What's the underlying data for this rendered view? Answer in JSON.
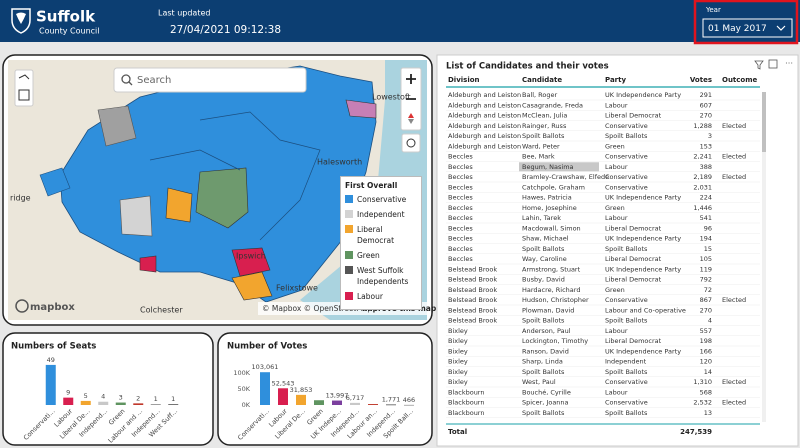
{
  "header": {
    "logo_title": "Suffolk",
    "logo_subtitle": "County Council",
    "last_updated_label": "Last updated",
    "last_updated": "27/04/2021 09:12:38",
    "year_label": "Year",
    "year_value": "01 May 2017"
  },
  "map": {
    "search_placeholder": "Search",
    "place_labels": [
      "Lowestoft",
      "Halesworth",
      "Ipswich",
      "Felixstowe",
      "Colchester",
      "ridge"
    ],
    "attribution": "© Mapbox © OpenStreetMap",
    "improve_link": "Improve this map",
    "logo": "mapbox",
    "legend": {
      "title": "First Overall",
      "items": [
        {
          "name": "Conservative",
          "color": "#2f8fdc"
        },
        {
          "name": "Independent",
          "color": "#d3d3d3"
        },
        {
          "name": "Liberal Democrat",
          "color": "#f2a52e"
        },
        {
          "name": "Green",
          "color": "#5f9460"
        },
        {
          "name": "West Suffolk Independents",
          "color": "#555555"
        },
        {
          "name": "Labour",
          "color": "#d81f4f"
        }
      ]
    }
  },
  "table": {
    "title": "List of Candidates and their votes",
    "columns": [
      "Division",
      "Candidate",
      "Party",
      "Votes",
      "Outcome"
    ],
    "rows": [
      [
        "Aldeburgh and Leiston",
        "Ball, Roger",
        "UK Independence Party",
        "291"
      ],
      [
        "Aldeburgh and Leiston",
        "Casagrande, Freda",
        "Labour",
        "607"
      ],
      [
        "Aldeburgh and Leiston",
        "McClean, Julia",
        "Liberal Democrat",
        "270"
      ],
      [
        "Aldeburgh and Leiston",
        "Rainger, Russ",
        "Conservative",
        "1,288",
        "Elected"
      ],
      [
        "Aldeburgh and Leiston",
        "Spoilt Ballots",
        "Spoilt Ballots",
        "3"
      ],
      [
        "Aldeburgh and Leiston",
        "Ward, Peter",
        "Green",
        "153"
      ],
      [
        "Beccles",
        "Bee, Mark",
        "Conservative",
        "2,241",
        "Elected"
      ],
      [
        "Beccles",
        "Begum, Nasima",
        "Labour",
        "388"
      ],
      [
        "Beccles",
        "Bramley-Crawshaw, Elfede",
        "Conservative",
        "2,189",
        "Elected"
      ],
      [
        "Beccles",
        "Catchpole, Graham",
        "Conservative",
        "2,031"
      ],
      [
        "Beccles",
        "Hawes, Patricia",
        "UK Independence Party",
        "224"
      ],
      [
        "Beccles",
        "Home, Josephine",
        "Green",
        "1,446"
      ],
      [
        "Beccles",
        "Lahin, Tarek",
        "Labour",
        "541"
      ],
      [
        "Beccles",
        "Macdowall, Simon",
        "Liberal Democrat",
        "96"
      ],
      [
        "Beccles",
        "Shaw, Michael",
        "UK Independence Party",
        "194"
      ],
      [
        "Beccles",
        "Spoilt Ballots",
        "Spoilt Ballots",
        "15"
      ],
      [
        "Beccles",
        "Way, Caroline",
        "Liberal Democrat",
        "105"
      ],
      [
        "Belstead Brook",
        "Armstrong, Stuart",
        "UK Independence Party",
        "119"
      ],
      [
        "Belstead Brook",
        "Busby, David",
        "Liberal Democrat",
        "792"
      ],
      [
        "Belstead Brook",
        "Hardacre, Richard",
        "Green",
        "72"
      ],
      [
        "Belstead Brook",
        "Hudson, Christopher",
        "Conservative",
        "867",
        "Elected"
      ],
      [
        "Belstead Brook",
        "Plowman, David",
        "Labour and Co-operative",
        "270"
      ],
      [
        "Belstead Brook",
        "Spoilt Ballots",
        "Spoilt Ballots",
        "4"
      ],
      [
        "Bixley",
        "Anderson, Paul",
        "Labour",
        "557"
      ],
      [
        "Bixley",
        "Lockington, Timothy",
        "Liberal Democrat",
        "198"
      ],
      [
        "Bixley",
        "Ranson, David",
        "UK Independence Party",
        "166"
      ],
      [
        "Bixley",
        "Sharp, Linda",
        "Independent",
        "120"
      ],
      [
        "Bixley",
        "Spoilt Ballots",
        "Spoilt Ballots",
        "14"
      ],
      [
        "Bixley",
        "West, Paul",
        "Conservative",
        "1,310",
        "Elected"
      ],
      [
        "Blackbourn",
        "Bouché, Cyrille",
        "Labour",
        "568"
      ],
      [
        "Blackbourn",
        "Spicer, Joanna",
        "Conservative",
        "2,532",
        "Elected"
      ],
      [
        "Blackbourn",
        "Spoilt Ballots",
        "Spoilt Ballots",
        "13"
      ]
    ],
    "total_label": "Total",
    "total_votes": "247,539"
  },
  "seats_chart": {
    "type": "bar",
    "title": "Numbers of Seats",
    "categories": [
      "Conservati...",
      "Labour",
      "Liberal De...",
      "Independ...",
      "Green",
      "Labour and ...",
      "Independ...",
      "West Suff..."
    ],
    "values": [
      49,
      9,
      5,
      4,
      3,
      2,
      1,
      1
    ],
    "colors": [
      "#2f8fdc",
      "#d81f4f",
      "#f2a52e",
      "#c8c8c8",
      "#5f9460",
      "#c0392b",
      "#8a8a8a",
      "#555555"
    ],
    "ylim": [
      0,
      55
    ]
  },
  "votes_chart": {
    "type": "bar",
    "title": "Number of Votes",
    "categories": [
      "Conservati...",
      "Labour",
      "Liberal De...",
      "Green",
      "UK Indepe...",
      "Independ...",
      "Labour an...",
      "Independ...",
      "Spoilt Ball..."
    ],
    "values": [
      103061,
      52543,
      31853,
      15000,
      13997,
      6717,
      3000,
      1771,
      466
    ],
    "value_labels": [
      "103,061",
      "52,543",
      "31,853",
      null,
      "13,997",
      "6,717",
      null,
      "1,771",
      "466"
    ],
    "colors": [
      "#2f8fdc",
      "#d81f4f",
      "#f2a52e",
      "#5f9460",
      "#7b3f9e",
      "#c8c8c8",
      "#c0392b",
      "#555555",
      "#9a9a9a"
    ],
    "ylim": [
      0,
      110000
    ],
    "yticks": [
      {
        "value": 0,
        "label": "0K"
      },
      {
        "value": 50000,
        "label": "50K"
      },
      {
        "value": 100000,
        "label": "100K"
      }
    ]
  }
}
